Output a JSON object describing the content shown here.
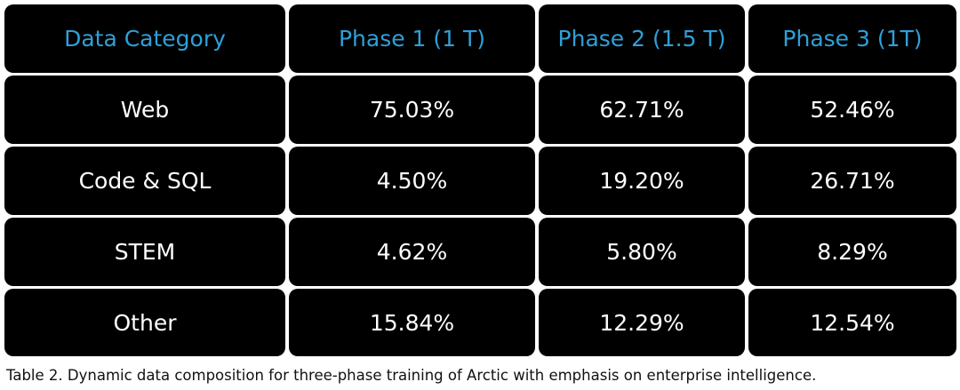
{
  "table": {
    "headers": [
      "Data Category",
      "Phase 1 (1 T)",
      "Phase 2 (1.5 T)",
      "Phase 3 (1T)"
    ],
    "rows": [
      [
        "Web",
        "75.03%",
        "62.71%",
        "52.46%"
      ],
      [
        "Code & SQL",
        "4.50%",
        "19.20%",
        "26.71%"
      ],
      [
        "STEM",
        "4.62%",
        "5.80%",
        "8.29%"
      ],
      [
        "Other",
        "15.84%",
        "12.29%",
        "12.54%"
      ]
    ]
  },
  "caption": "Table 2. Dynamic data composition for three-phase training of Arctic with emphasis on enterprise intelligence.",
  "colors": {
    "header_text": "#2ea0d8",
    "cell_background": "#000000",
    "cell_text": "#ffffff"
  }
}
